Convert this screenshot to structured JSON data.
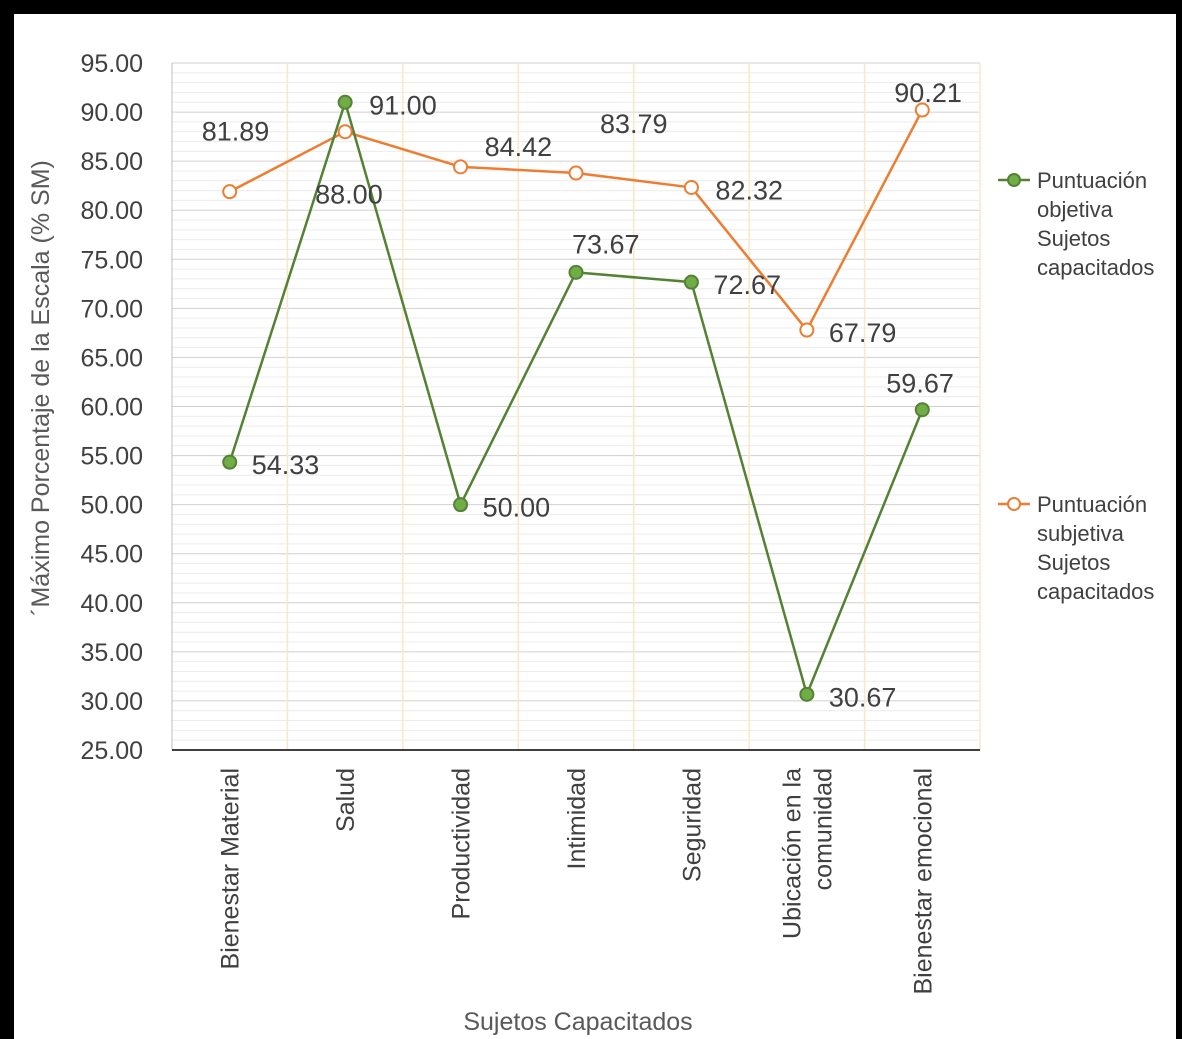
{
  "chart_data": {
    "type": "line",
    "xlabel": "Sujetos Capacitados",
    "ylabel": "´Máximo Porcentaje de la Escala (% SM)",
    "ylim": [
      25,
      95
    ],
    "y_major_step": 5,
    "y_ticks": [
      "25.00",
      "30.00",
      "35.00",
      "40.00",
      "45.00",
      "50.00",
      "55.00",
      "60.00",
      "65.00",
      "70.00",
      "75.00",
      "80.00",
      "85.00",
      "90.00",
      "95.00"
    ],
    "grid": true,
    "legend_position": "right",
    "categories": [
      [
        "Bienestar Material"
      ],
      [
        "Salud"
      ],
      [
        "Productividad"
      ],
      [
        "Intimidad"
      ],
      [
        "Seguridad"
      ],
      [
        "Ubicación en la",
        "comunidad"
      ],
      [
        "Bienestar emocional"
      ]
    ],
    "series": [
      {
        "name_lines": [
          "Puntuación",
          "objetiva",
          "Sujetos",
          "capacitados"
        ],
        "color": "#548235",
        "marker_fill": "#70AD47",
        "values": [
          54.33,
          91.0,
          50.0,
          73.67,
          72.67,
          30.67,
          59.67
        ],
        "labels": [
          "54.33",
          "91.00",
          "50.00",
          "73.67",
          "72.67",
          "30.67",
          "59.67"
        ]
      },
      {
        "name_lines": [
          "Puntuación",
          "subjetiva",
          "Sujetos",
          "capacitados"
        ],
        "color": "#ED7D31",
        "marker_fill": "#ffffff",
        "values": [
          81.89,
          88.0,
          84.42,
          83.79,
          82.32,
          67.79,
          90.21
        ],
        "labels": [
          "81.89",
          "88.00",
          "84.42",
          "83.79",
          "82.32",
          "67.79",
          "90.21"
        ]
      }
    ]
  }
}
